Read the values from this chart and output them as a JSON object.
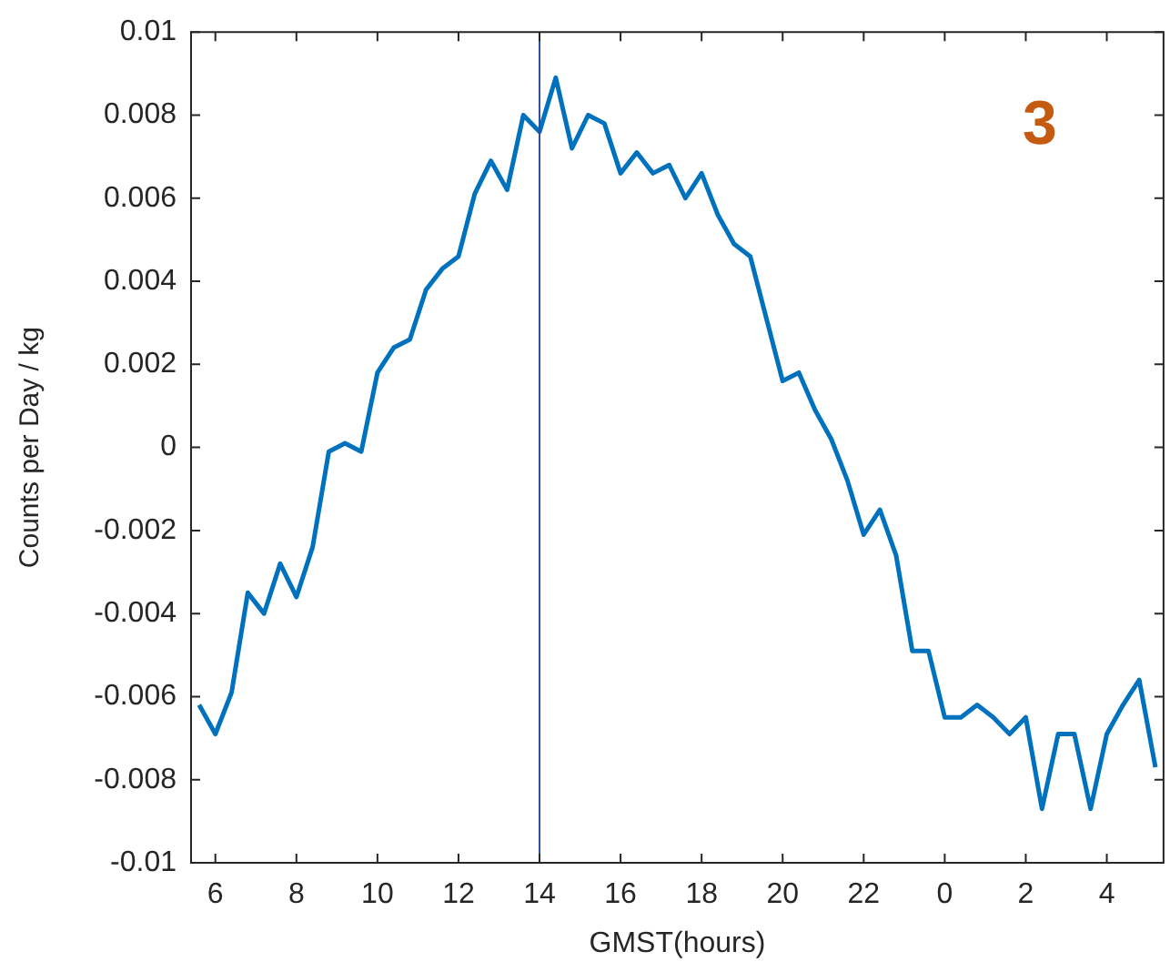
{
  "chart_data": {
    "type": "line",
    "xlabel": "GMST(hours)",
    "ylabel": "Counts per Day / kg",
    "categories": [
      null,
      "6",
      null,
      null,
      null,
      null,
      "8",
      null,
      null,
      null,
      null,
      "10",
      null,
      null,
      null,
      null,
      "12",
      null,
      null,
      null,
      null,
      "14",
      null,
      null,
      null,
      null,
      "16",
      null,
      null,
      null,
      null,
      "18",
      null,
      null,
      null,
      null,
      "20",
      null,
      null,
      null,
      null,
      "22",
      null,
      null,
      null,
      null,
      "0",
      null,
      null,
      null,
      null,
      "2",
      null,
      null,
      null,
      null,
      "4",
      null,
      null,
      null
    ],
    "series": [
      {
        "color": "#0072bd",
        "values": [
          -0.0062,
          -0.0069,
          -0.0059,
          -0.0035,
          -0.004,
          -0.0028,
          -0.0036,
          -0.0024,
          -0.0001,
          0.0001,
          -0.0001,
          0.0018,
          0.0024,
          0.0026,
          0.0038,
          0.0043,
          0.0046,
          0.0061,
          0.0069,
          0.0062,
          0.008,
          0.0076,
          0.0089,
          0.0072,
          0.008,
          0.0078,
          0.0066,
          0.0071,
          0.0066,
          0.0068,
          0.006,
          0.0066,
          0.0056,
          0.0049,
          0.0046,
          0.0031,
          0.0016,
          0.0018,
          0.0009,
          0.0002,
          -0.0008,
          -0.0021,
          -0.0015,
          -0.0026,
          -0.0049,
          -0.0049,
          -0.0065,
          -0.0065,
          -0.0062,
          -0.0065,
          -0.0069,
          -0.0065,
          -0.0087,
          -0.0069,
          -0.0069,
          -0.0087,
          -0.0069,
          -0.0062,
          -0.0056,
          -0.0077
        ]
      }
    ],
    "ylim": [
      -0.01,
      0.01
    ],
    "yticks": [
      -0.01,
      -0.008,
      -0.006,
      -0.004,
      -0.002,
      0,
      0.002,
      0.004,
      0.006,
      0.008,
      0.01
    ],
    "ref_lines": [
      {
        "axis": "x",
        "value": "14",
        "color": "#2f4f9f"
      }
    ],
    "annotations": [
      "3"
    ],
    "marker": "none",
    "line_style": "solid",
    "legend": false
  }
}
